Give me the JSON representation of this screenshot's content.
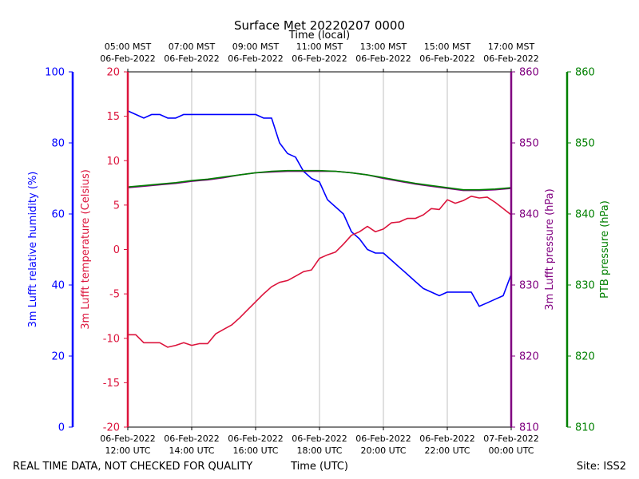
{
  "chart_data": {
    "type": "line",
    "title": "Surface Met 20220207 0000",
    "top_axis_label": "Time (local)",
    "xlabel": "Time (UTC)",
    "footer_left": "REAL TIME DATA, NOT CHECKED FOR QUALITY",
    "footer_right": "Site: ISS2",
    "grid": "vertical lines at x ticks",
    "x_ticks_utc": [
      [
        "06-Feb-2022",
        "12:00 UTC"
      ],
      [
        "06-Feb-2022",
        "14:00 UTC"
      ],
      [
        "06-Feb-2022",
        "16:00 UTC"
      ],
      [
        "06-Feb-2022",
        "18:00 UTC"
      ],
      [
        "06-Feb-2022",
        "20:00 UTC"
      ],
      [
        "06-Feb-2022",
        "22:00 UTC"
      ],
      [
        "07-Feb-2022",
        "00:00 UTC"
      ]
    ],
    "x_ticks_local": [
      [
        "05:00 MST",
        "06-Feb-2022"
      ],
      [
        "07:00 MST",
        "06-Feb-2022"
      ],
      [
        "09:00 MST",
        "06-Feb-2022"
      ],
      [
        "11:00 MST",
        "06-Feb-2022"
      ],
      [
        "13:00 MST",
        "06-Feb-2022"
      ],
      [
        "15:00 MST",
        "06-Feb-2022"
      ],
      [
        "17:00 MST",
        "06-Feb-2022"
      ]
    ],
    "x_range_hours_utc": [
      12,
      24
    ],
    "axes": [
      {
        "id": "rh",
        "label": "3m Lufft relative humidity (%)",
        "color": "#0000ff",
        "range": [
          0,
          100
        ],
        "ticks": [
          0,
          20,
          40,
          60,
          80,
          100
        ]
      },
      {
        "id": "temp",
        "label": "3m Lufft temperature (Celsius)",
        "color": "#dc143c",
        "range": [
          -20,
          20
        ],
        "ticks": [
          -20,
          -15,
          -10,
          -5,
          0,
          5,
          10,
          15,
          20
        ]
      },
      {
        "id": "pres",
        "label": "3m Lufft pressure (hPa)",
        "color": "#800080",
        "range": [
          810,
          860
        ],
        "ticks": [
          810,
          820,
          830,
          840,
          850,
          860
        ]
      },
      {
        "id": "ptb",
        "label": "PTB pressure (hPa)",
        "color": "#008000",
        "range": [
          810,
          860
        ],
        "ticks": [
          810,
          820,
          830,
          840,
          850,
          860
        ]
      }
    ],
    "series": [
      {
        "axis": "rh",
        "color": "#0000ff",
        "x": [
          12.0,
          12.25,
          12.5,
          12.75,
          13.0,
          13.25,
          13.5,
          13.75,
          14.0,
          14.25,
          14.5,
          14.75,
          15.0,
          15.25,
          15.5,
          15.75,
          16.0,
          16.25,
          16.5,
          16.75,
          17.0,
          17.25,
          17.5,
          17.75,
          18.0,
          18.25,
          18.5,
          18.75,
          19.0,
          19.25,
          19.5,
          19.75,
          20.0,
          20.25,
          20.5,
          20.75,
          21.0,
          21.25,
          21.5,
          21.75,
          22.0,
          22.25,
          22.5,
          22.75,
          23.0,
          23.25,
          23.5,
          23.75,
          24.0
        ],
        "y": [
          89,
          88,
          87,
          88,
          88,
          87,
          87,
          88,
          88,
          88,
          88,
          88,
          88,
          88,
          88,
          88,
          88,
          87,
          87,
          80,
          77,
          76,
          72,
          70,
          69,
          64,
          62,
          60,
          55,
          53,
          50,
          49,
          49,
          47,
          45,
          43,
          41,
          39,
          38,
          37,
          38,
          38,
          38,
          38,
          34,
          35,
          36,
          37,
          43
        ]
      },
      {
        "axis": "temp",
        "color": "#dc143c",
        "x": [
          12.0,
          12.25,
          12.5,
          12.75,
          13.0,
          13.25,
          13.5,
          13.75,
          14.0,
          14.25,
          14.5,
          14.75,
          15.0,
          15.25,
          15.5,
          15.75,
          16.0,
          16.25,
          16.5,
          16.75,
          17.0,
          17.25,
          17.5,
          17.75,
          18.0,
          18.25,
          18.5,
          18.75,
          19.0,
          19.25,
          19.5,
          19.75,
          20.0,
          20.25,
          20.5,
          20.75,
          21.0,
          21.25,
          21.5,
          21.75,
          22.0,
          22.25,
          22.5,
          22.75,
          23.0,
          23.25,
          23.5,
          23.75,
          24.0
        ],
        "y": [
          -9.6,
          -9.6,
          -10.5,
          -10.5,
          -10.5,
          -11.0,
          -10.8,
          -10.5,
          -10.8,
          -10.6,
          -10.6,
          -9.5,
          -9.0,
          -8.5,
          -7.7,
          -6.8,
          -5.9,
          -5.0,
          -4.2,
          -3.7,
          -3.5,
          -3.0,
          -2.5,
          -2.3,
          -1.0,
          -0.6,
          -0.3,
          0.6,
          1.6,
          2.0,
          2.6,
          2.0,
          2.3,
          3.0,
          3.1,
          3.5,
          3.5,
          3.9,
          4.6,
          4.5,
          5.6,
          5.2,
          5.5,
          6.0,
          5.8,
          5.9,
          5.3,
          4.6,
          3.9
        ]
      },
      {
        "axis": "pres",
        "color": "#800080",
        "x": [
          12.0,
          12.5,
          13.0,
          13.5,
          14.0,
          14.5,
          15.0,
          15.5,
          16.0,
          16.5,
          17.0,
          17.5,
          18.0,
          18.5,
          19.0,
          19.5,
          20.0,
          20.5,
          21.0,
          21.5,
          22.0,
          22.5,
          23.0,
          23.5,
          24.0
        ],
        "y": [
          843.7,
          843.9,
          844.1,
          844.3,
          844.6,
          844.8,
          845.1,
          845.5,
          845.8,
          845.9,
          846.0,
          846.0,
          846.0,
          846.0,
          845.8,
          845.5,
          845.0,
          844.6,
          844.2,
          843.9,
          843.6,
          843.3,
          843.3,
          843.4,
          843.6
        ]
      },
      {
        "axis": "ptb",
        "color": "#008000",
        "x": [
          12.0,
          12.5,
          13.0,
          13.5,
          14.0,
          14.5,
          15.0,
          15.5,
          16.0,
          16.5,
          17.0,
          17.5,
          18.0,
          18.5,
          19.0,
          19.5,
          20.0,
          20.5,
          21.0,
          21.5,
          22.0,
          22.5,
          23.0,
          23.5,
          24.0
        ],
        "y": [
          843.8,
          844.0,
          844.2,
          844.4,
          844.7,
          844.9,
          845.2,
          845.5,
          845.8,
          846.0,
          846.1,
          846.1,
          846.1,
          846.0,
          845.8,
          845.5,
          845.1,
          844.7,
          844.3,
          844.0,
          843.7,
          843.4,
          843.4,
          843.5,
          843.7
        ]
      }
    ]
  }
}
